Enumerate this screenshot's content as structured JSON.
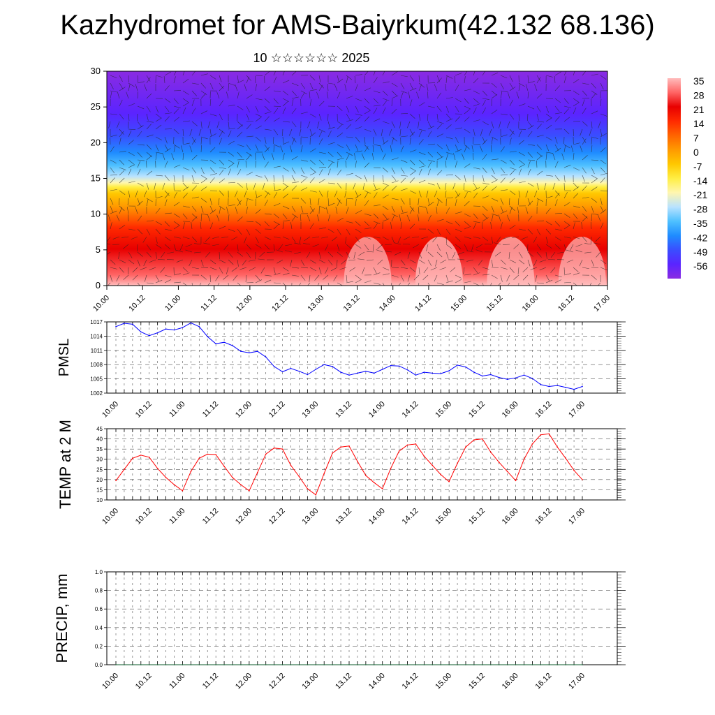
{
  "title": "Kazhydromet for AMS-Baiyrkum(42.132 68.136)",
  "subtitle": "10 ☆☆☆☆☆☆ 2025",
  "time_labels": [
    "10.00",
    "10.12",
    "11.00",
    "11.12",
    "12.00",
    "12.12",
    "13.00",
    "13.12",
    "14.00",
    "14.12",
    "15.00",
    "15.12",
    "16.00",
    "16.12",
    "17.00"
  ],
  "colors": {
    "pmsl_line": "#0000ff",
    "temp_line": "#ff0000",
    "colorbar": [
      "#ffbcbc",
      "#ff6464",
      "#e80000",
      "#ff2a00",
      "#ff6400",
      "#ff9a00",
      "#ffc800",
      "#ffee44",
      "#fff6b0",
      "#b8e2ff",
      "#4ec0ff",
      "#1f8cff",
      "#3a4dff",
      "#5a24ff",
      "#8a2be2"
    ]
  },
  "chart_data": [
    {
      "type": "heatmap",
      "name": "upper-air-section",
      "ylim": [
        0,
        30
      ],
      "yticks": [
        0,
        5,
        10,
        15,
        20,
        25,
        30
      ],
      "xticks": [
        "10.00",
        "10.12",
        "11.00",
        "11.12",
        "12.00",
        "12.12",
        "13.00",
        "13.12",
        "14.00",
        "14.12",
        "15.00",
        "15.12",
        "16.00",
        "16.12",
        "17.00"
      ],
      "colorbar_labels": [
        "35",
        "28",
        "21",
        "14",
        "7",
        "0",
        "-7",
        "-14",
        "-21",
        "-28",
        "-35",
        "-42",
        "-49",
        "-56"
      ],
      "overlay": "wind-barbs"
    },
    {
      "type": "line",
      "ylabel": "PMSL",
      "ylim": [
        1002,
        1017
      ],
      "yticks": [
        1002,
        1005,
        1008,
        1011,
        1014,
        1017
      ],
      "x_count": 57,
      "values": [
        1016.0,
        1016.7,
        1016.5,
        1014.9,
        1014.1,
        1014.7,
        1015.5,
        1015.3,
        1015.8,
        1016.8,
        1016.0,
        1013.9,
        1012.4,
        1012.7,
        1012.0,
        1010.8,
        1010.5,
        1010.8,
        1009.6,
        1007.6,
        1006.5,
        1007.2,
        1006.6,
        1005.9,
        1007.0,
        1008.0,
        1007.6,
        1006.4,
        1005.8,
        1006.2,
        1006.6,
        1006.2,
        1007.0,
        1007.8,
        1007.7,
        1006.9,
        1005.8,
        1006.4,
        1006.2,
        1006.1,
        1006.7,
        1007.9,
        1007.5,
        1006.4,
        1005.6,
        1005.9,
        1005.3,
        1004.9,
        1005.2,
        1005.8,
        1005.1,
        1003.8,
        1003.4,
        1003.6,
        1003.2,
        1002.8,
        1003.4
      ]
    },
    {
      "type": "line",
      "ylabel": "TEMP at 2 M",
      "ylim": [
        10,
        45
      ],
      "yticks": [
        10,
        15,
        20,
        25,
        30,
        35,
        40,
        45
      ],
      "x_count": 57,
      "values": [
        19.5,
        25.0,
        30.5,
        32.0,
        31.0,
        25.5,
        21.0,
        17.5,
        14.5,
        24.0,
        30.5,
        32.5,
        32.3,
        26.5,
        21.0,
        17.5,
        14.5,
        23.5,
        32.5,
        35.5,
        35.0,
        27.0,
        21.5,
        15.5,
        12.5,
        23.0,
        33.0,
        36.0,
        36.5,
        29.0,
        22.0,
        18.5,
        15.5,
        25.5,
        34.0,
        37.0,
        37.5,
        31.5,
        27.0,
        22.5,
        19.0,
        28.0,
        36.0,
        39.5,
        40.0,
        33.5,
        28.5,
        24.0,
        19.5,
        30.0,
        37.5,
        42.0,
        42.5,
        36.0,
        30.5,
        24.5,
        20.0
      ]
    },
    {
      "type": "line",
      "ylabel": "PRECIP, mm",
      "ylim": [
        0,
        1
      ],
      "yticks": [
        "0.0",
        "0.2",
        "0.4",
        "0.6",
        "0.8",
        "1.0"
      ],
      "x_count": 57,
      "values": [
        0,
        0,
        0,
        0,
        0,
        0,
        0,
        0,
        0,
        0,
        0,
        0,
        0,
        0,
        0,
        0,
        0,
        0,
        0,
        0,
        0,
        0,
        0,
        0,
        0,
        0,
        0,
        0,
        0,
        0,
        0,
        0,
        0,
        0,
        0,
        0,
        0,
        0,
        0,
        0,
        0,
        0,
        0,
        0,
        0,
        0,
        0,
        0,
        0,
        0,
        0,
        0,
        0,
        0,
        0,
        0,
        0
      ]
    }
  ]
}
